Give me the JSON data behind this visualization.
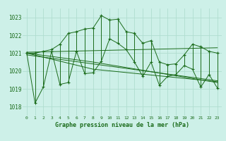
{
  "title": "Graphe pression niveau de la mer (hPa)",
  "bg_color": "#cdf0e8",
  "grid_color": "#b0ddd0",
  "line_color": "#1a6b1a",
  "x_labels": [
    "0",
    "1",
    "2",
    "3",
    "4",
    "5",
    "6",
    "7",
    "8",
    "9",
    "10",
    "11",
    "12",
    "13",
    "14",
    "15",
    "16",
    "17",
    "18",
    "19",
    "20",
    "21",
    "22",
    "23"
  ],
  "ylim": [
    1017.5,
    1023.5
  ],
  "yticks": [
    1018,
    1019,
    1020,
    1021,
    1022,
    1023
  ],
  "top_values": [
    1021.0,
    1021.0,
    1021.1,
    1021.2,
    1021.5,
    1022.1,
    1022.2,
    1022.35,
    1022.4,
    1023.1,
    1022.85,
    1022.9,
    1022.2,
    1022.1,
    1021.55,
    1021.7,
    1020.5,
    1020.35,
    1020.4,
    1020.9,
    1021.5,
    1021.35,
    1021.1,
    1021.0
  ],
  "bot_values": [
    1021.0,
    1018.2,
    1019.1,
    1021.1,
    1019.25,
    1019.35,
    1021.1,
    1019.85,
    1019.9,
    1020.55,
    1021.8,
    1021.55,
    1021.2,
    1020.5,
    1019.7,
    1020.5,
    1019.2,
    1019.7,
    1019.8,
    1020.3,
    1020.1,
    1019.1,
    1019.8,
    1019.05
  ],
  "trend_lines": [
    {
      "x": [
        0,
        23
      ],
      "y": [
        1021.05,
        1021.3
      ]
    },
    {
      "x": [
        0,
        23
      ],
      "y": [
        1020.9,
        1019.45
      ]
    },
    {
      "x": [
        0,
        8,
        23
      ],
      "y": [
        1021.0,
        1020.1,
        1019.4
      ]
    },
    {
      "x": [
        0,
        8,
        23
      ],
      "y": [
        1021.0,
        1020.5,
        1019.35
      ]
    }
  ]
}
